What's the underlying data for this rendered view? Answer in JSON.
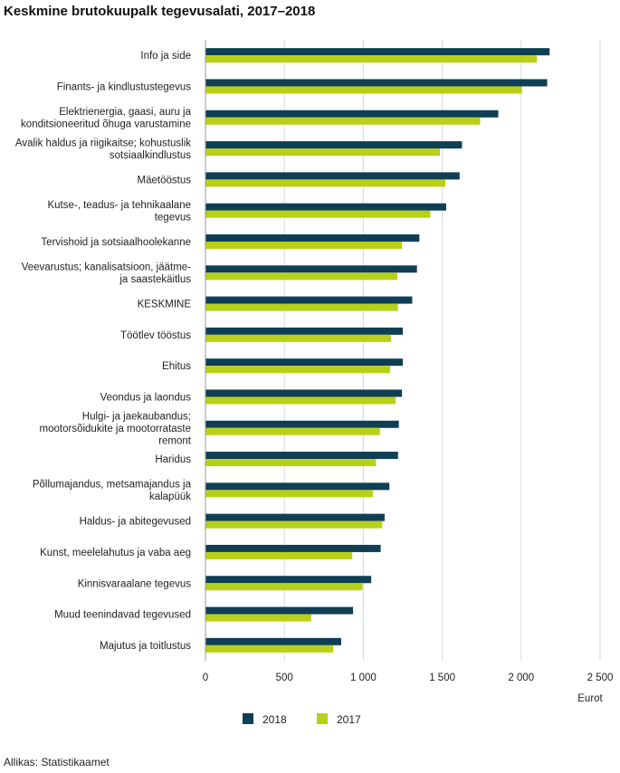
{
  "chart_data": {
    "type": "bar",
    "orientation": "horizontal",
    "title": "Keskmine brutokuupalk tegevusalati, 2017–2018",
    "xlabel": "Eurot",
    "xlim": [
      0,
      2500
    ],
    "xticks": [
      0,
      500,
      1000,
      1500,
      2000,
      2500
    ],
    "xtick_labels": [
      "0",
      "500",
      "1 000",
      "1 500",
      "2 000",
      "2 500"
    ],
    "grid": true,
    "legend_position": "bottom",
    "categories": [
      [
        "Info ja side"
      ],
      [
        "Finants- ja kindlustustegevus"
      ],
      [
        "Elektrienergia, gaasi, auru ja",
        "konditsioneeritud õhuga varustamine"
      ],
      [
        "Avalik haldus ja riigikaitse; kohustuslik",
        "sotsiaalkindlustus"
      ],
      [
        "Mäetööstus"
      ],
      [
        "Kutse-, teadus- ja tehnikaalane",
        "tegevus"
      ],
      [
        "Tervishoid ja sotsiaalhoolekanne"
      ],
      [
        "Veevarustus; kanalisatsioon, jäätme-",
        "ja saastekäitlus"
      ],
      [
        "KESKMINE"
      ],
      [
        "Töötlev tööstus"
      ],
      [
        "Ehitus"
      ],
      [
        "Veondus ja laondus"
      ],
      [
        "Hulgi- ja jaekaubandus;",
        "mootorsõidukite ja mootorrataste",
        "remont"
      ],
      [
        "Haridus"
      ],
      [
        "Põllumajandus, metsamajandus ja",
        "kalapüük"
      ],
      [
        "Haldus- ja abitegevused"
      ],
      [
        "Kunst, meelelahutus ja vaba aeg"
      ],
      [
        "Kinnisvaraalane tegevus"
      ],
      [
        "Muud teenindavad tegevused"
      ],
      [
        "Majutus ja toitlustus"
      ]
    ],
    "series": [
      {
        "name": "2018",
        "color": "#0f3f54",
        "values": [
          2180,
          2165,
          1855,
          1625,
          1610,
          1525,
          1355,
          1340,
          1310,
          1250,
          1250,
          1245,
          1225,
          1220,
          1165,
          1135,
          1110,
          1050,
          935,
          860
        ]
      },
      {
        "name": "2017",
        "color": "#b8d118",
        "values": [
          2100,
          2005,
          1740,
          1485,
          1520,
          1425,
          1245,
          1215,
          1220,
          1175,
          1170,
          1205,
          1105,
          1080,
          1060,
          1120,
          930,
          995,
          670,
          810
        ]
      }
    ]
  },
  "source": "Allikas: Statistikaamet"
}
